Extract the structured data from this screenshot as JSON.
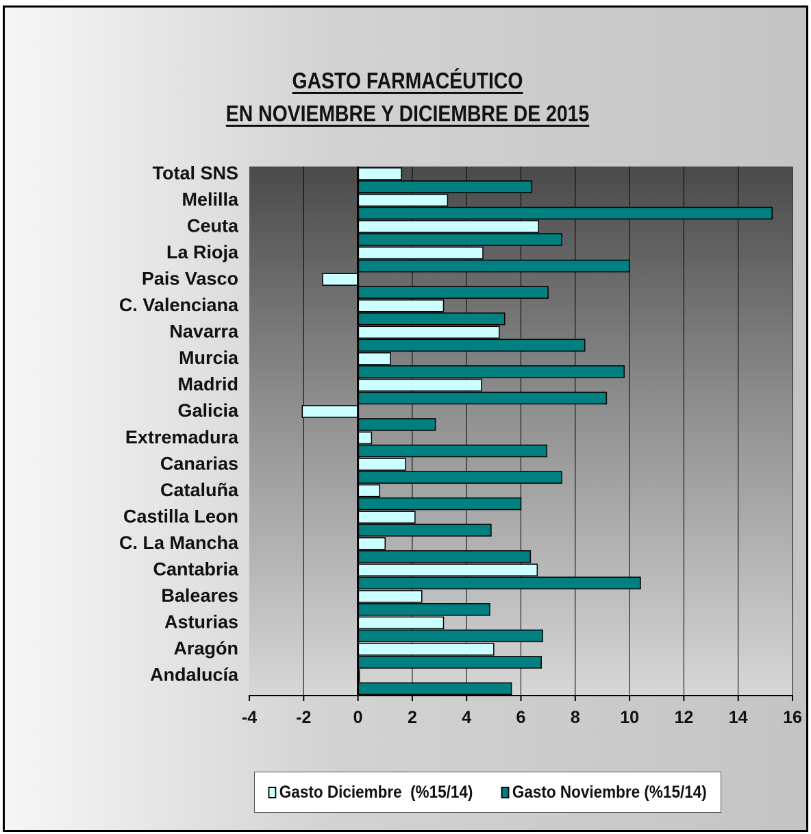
{
  "chart_data": {
    "type": "bar",
    "orientation": "horizontal",
    "title": [
      "GASTO FARMACÉUTICO",
      "EN NOVIEMBRE Y DICIEMBRE DE 2015"
    ],
    "categories": [
      "Total SNS",
      "Melilla",
      "Ceuta",
      "La Rioja",
      "Pais Vasco",
      "C. Valenciana",
      "Navarra",
      "Murcia",
      "Madrid",
      "Galicia",
      "Extremadura",
      "Canarias",
      "Cataluña",
      "Castilla Leon",
      "C. La Mancha",
      "Cantabria",
      "Baleares",
      "Asturias",
      "Aragón",
      "Andalucía"
    ],
    "series": [
      {
        "name": "Gasto Diciembre  (%15/14)",
        "color": "#ccffff",
        "values": [
          1.6,
          3.3,
          6.65,
          4.6,
          -1.3,
          3.15,
          5.2,
          1.2,
          4.55,
          -2.05,
          0.5,
          1.75,
          0.8,
          2.1,
          1.0,
          6.6,
          2.35,
          3.15,
          5.0,
          0.05
        ]
      },
      {
        "name": "Gasto Noviembre (%15/14)",
        "color": "#008080",
        "values": [
          6.4,
          15.25,
          7.5,
          10.0,
          7.0,
          5.4,
          8.35,
          9.8,
          9.15,
          2.85,
          6.95,
          7.5,
          6.0,
          4.9,
          6.35,
          10.4,
          4.85,
          6.8,
          6.75,
          5.65
        ]
      }
    ],
    "xlim": [
      -4,
      16
    ],
    "xticks": [
      "-4",
      "-2",
      "0",
      "2",
      "4",
      "6",
      "8",
      "10",
      "12",
      "14",
      "16"
    ],
    "grid": "vertical",
    "legend_position": "bottom",
    "plot_background": "dark-gradient"
  }
}
